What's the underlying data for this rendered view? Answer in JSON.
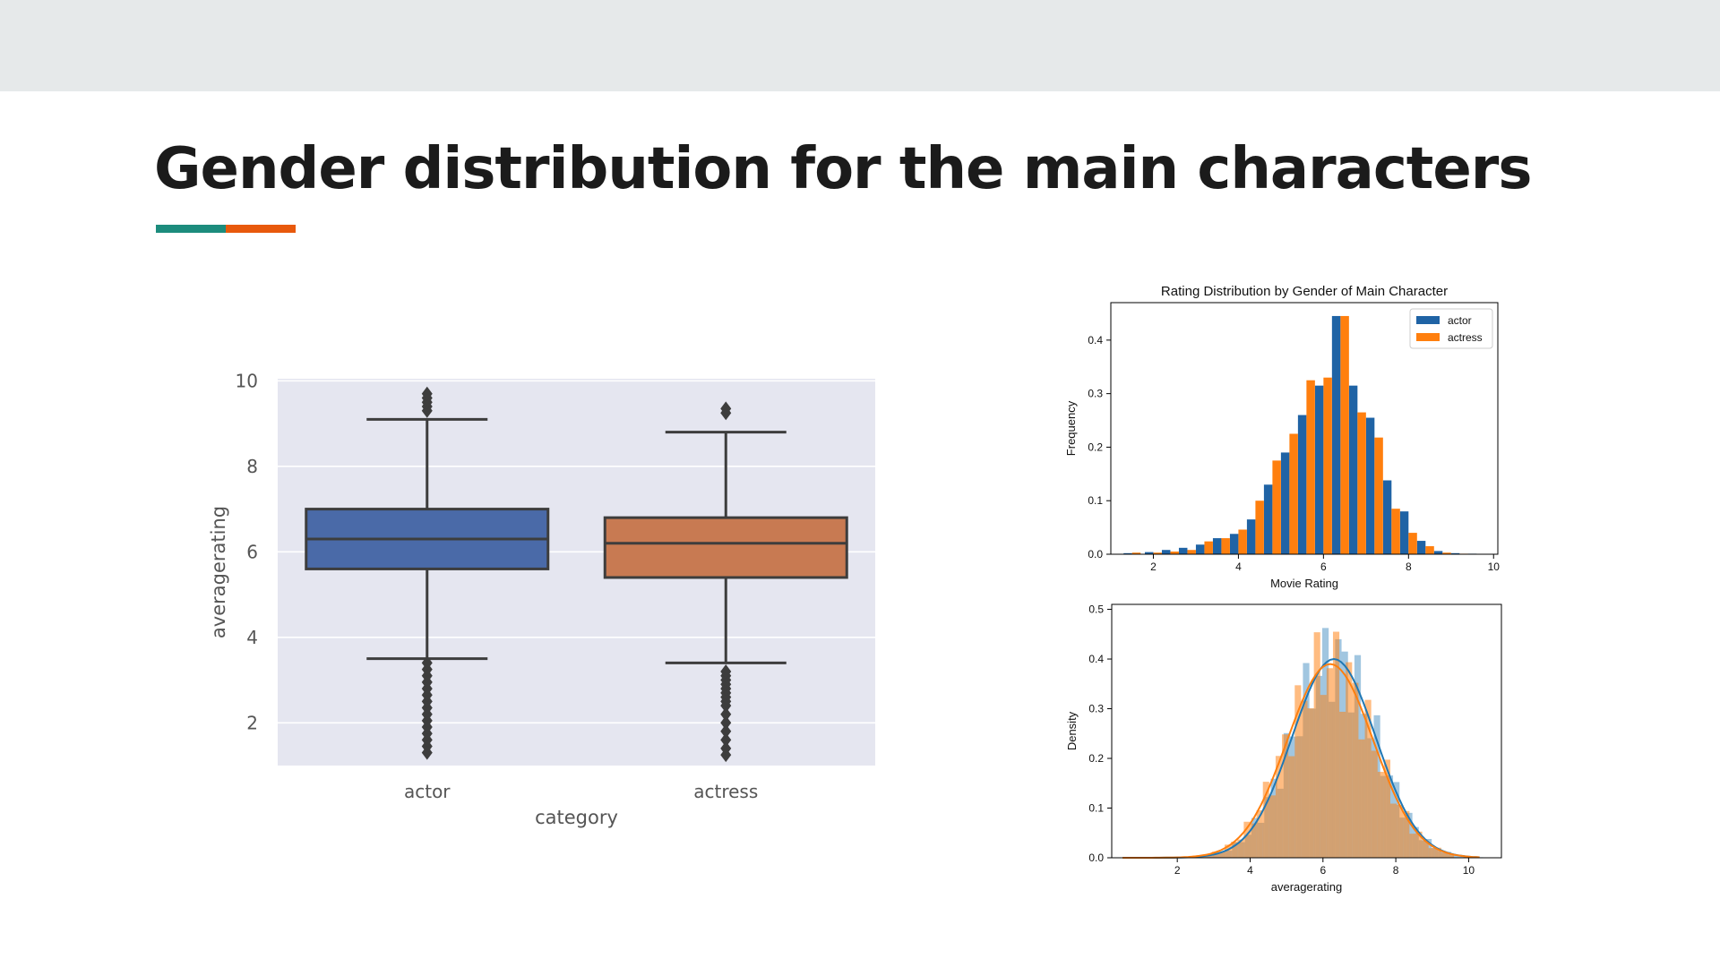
{
  "slide": {
    "title": "Gender distribution for the main characters",
    "accent_colors": [
      "#1c8c7d",
      "#e8590c"
    ],
    "topbar_color": "#e6e9ea"
  },
  "chart_data": [
    {
      "type": "box",
      "title": "",
      "xlabel": "category",
      "ylabel": "averagerating",
      "ylim": [
        1,
        10.05
      ],
      "yticks": [
        2,
        4,
        6,
        8,
        10
      ],
      "grid": true,
      "background": "#e5e6f0",
      "categories": [
        "actor",
        "actress"
      ],
      "colors": [
        "#4a6aa8",
        "#c87a52"
      ],
      "boxes": [
        {
          "category": "actor",
          "whisker_low": 3.5,
          "q1": 5.6,
          "median": 6.3,
          "q3": 7.0,
          "whisker_high": 9.1,
          "outliers": [
            1.3,
            1.45,
            1.6,
            1.75,
            1.9,
            2.05,
            2.2,
            2.35,
            2.5,
            2.65,
            2.8,
            2.95,
            3.1,
            3.25,
            3.4,
            9.3,
            9.4,
            9.5,
            9.6,
            9.7
          ]
        },
        {
          "category": "actress",
          "whisker_low": 3.4,
          "q1": 5.4,
          "median": 6.2,
          "q3": 6.8,
          "whisker_high": 8.8,
          "outliers": [
            1.25,
            1.4,
            1.6,
            1.8,
            2.0,
            2.2,
            2.4,
            2.5,
            2.6,
            2.7,
            2.8,
            2.9,
            3.0,
            3.1,
            3.2,
            9.25,
            9.35
          ]
        }
      ]
    },
    {
      "type": "bar",
      "title": "Rating Distribution by Gender of Main Character",
      "xlabel": "Movie Rating",
      "ylabel": "Frequency",
      "xlim": [
        1.0,
        10.1
      ],
      "ylim": [
        0,
        0.47
      ],
      "xticks": [
        2,
        4,
        6,
        8,
        10
      ],
      "yticks": [
        0.0,
        0.1,
        0.2,
        0.3,
        0.4
      ],
      "tick_format": "0.1",
      "legend_position": "top-right",
      "bin_centers": [
        1.5,
        2.0,
        2.4,
        2.8,
        3.2,
        3.6,
        4.0,
        4.4,
        4.8,
        5.2,
        5.6,
        6.0,
        6.4,
        6.8,
        7.2,
        7.6,
        8.0,
        8.4,
        8.8,
        9.2,
        9.6
      ],
      "series": [
        {
          "name": "actor",
          "color": "#1f63a5",
          "values": [
            0.002,
            0.004,
            0.008,
            0.012,
            0.018,
            0.03,
            0.038,
            0.065,
            0.13,
            0.19,
            0.26,
            0.315,
            0.445,
            0.315,
            0.255,
            0.138,
            0.08,
            0.025,
            0.006,
            0.002,
            0.001
          ]
        },
        {
          "name": "actress",
          "color": "#ff7f0e",
          "values": [
            0.003,
            0.003,
            0.005,
            0.008,
            0.024,
            0.03,
            0.046,
            0.1,
            0.175,
            0.225,
            0.325,
            0.33,
            0.445,
            0.265,
            0.218,
            0.085,
            0.04,
            0.015,
            0.003,
            0.001,
            0.0
          ]
        }
      ]
    },
    {
      "type": "area",
      "title": "",
      "xlabel": "averagerating",
      "ylabel": "Density",
      "xlim": [
        0.2,
        10.9
      ],
      "ylim": [
        0,
        0.51
      ],
      "xticks": [
        2,
        4,
        6,
        8,
        10
      ],
      "yticks": [
        0.0,
        0.1,
        0.2,
        0.3,
        0.4,
        0.5
      ],
      "tick_format": "0.1",
      "series": [
        {
          "name": "actor",
          "color": "#1f77b4",
          "hist_alpha": 0.42,
          "mean": 6.3,
          "sd": 1.15,
          "peak": 0.4,
          "hist_range": [
            0.5,
            10.4
          ],
          "bins": 56
        },
        {
          "name": "actress",
          "color": "#ff7f0e",
          "hist_alpha": 0.52,
          "mean": 6.2,
          "sd": 1.18,
          "peak": 0.39,
          "hist_range": [
            0.5,
            9.6
          ],
          "bins": 52
        }
      ]
    }
  ]
}
